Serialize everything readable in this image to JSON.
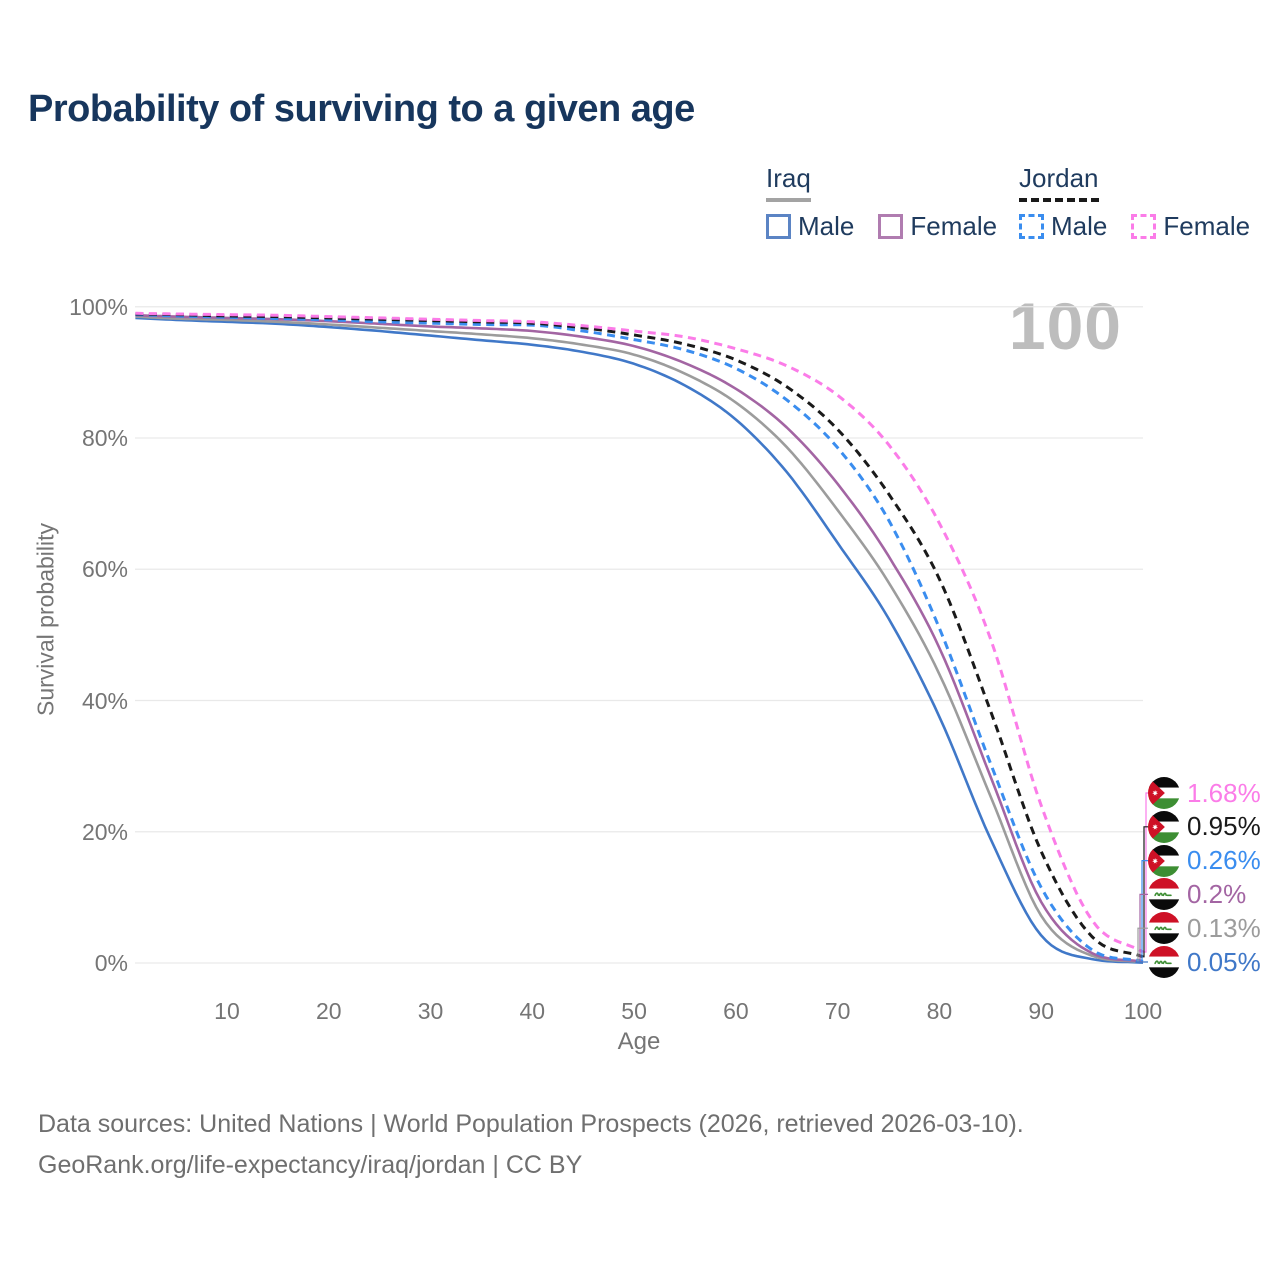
{
  "title": "Probability of surviving to a given age",
  "watermark": "100",
  "legend": {
    "groups": [
      {
        "country": "Iraq",
        "line_style": "solid",
        "underline_color": "#a3a3a3",
        "items": [
          {
            "label": "Male",
            "color": "#5b84c4"
          },
          {
            "label": "Female",
            "color": "#b07cb0"
          }
        ]
      },
      {
        "country": "Jordan",
        "line_style": "dashed",
        "underline_color": "#1a1a1a",
        "items": [
          {
            "label": "Male",
            "color": "#3a8def"
          },
          {
            "label": "Female",
            "color": "#fb7ce8"
          }
        ]
      }
    ]
  },
  "axes": {
    "x": {
      "label": "Age",
      "ticks": [
        10,
        20,
        30,
        40,
        50,
        60,
        70,
        80,
        90,
        100
      ],
      "range": [
        0,
        100
      ]
    },
    "y": {
      "label": "Survival probability",
      "tick_labels": [
        "0%",
        "20%",
        "40%",
        "60%",
        "80%",
        "100%"
      ],
      "tick_values": [
        0,
        20,
        40,
        60,
        80,
        100
      ],
      "range": [
        0,
        100
      ]
    }
  },
  "chart_data": {
    "type": "line",
    "title": "Probability of surviving to a given age",
    "xlabel": "Age",
    "ylabel": "Survival probability",
    "xlim": [
      0,
      100
    ],
    "ylim_percent": [
      0,
      100
    ],
    "grid": "horizontal",
    "x": [
      1,
      5,
      10,
      15,
      20,
      25,
      30,
      35,
      40,
      45,
      50,
      55,
      60,
      65,
      70,
      75,
      80,
      85,
      90,
      95,
      100
    ],
    "series": [
      {
        "name": "Iraq Male",
        "country": "Iraq",
        "style": "solid",
        "color": "#4078c8",
        "end_label": "0.05%",
        "values": [
          98.3,
          98.0,
          97.7,
          97.4,
          96.9,
          96.3,
          95.6,
          94.9,
          94.2,
          93.1,
          91.3,
          88.0,
          82.8,
          74.8,
          64.0,
          52.5,
          37.5,
          19.0,
          4.2,
          0.6,
          0.05
        ]
      },
      {
        "name": "Iraq",
        "country": "Iraq",
        "style": "solid",
        "color": "#9c9c9c",
        "end_label": "0.13%",
        "values": [
          98.5,
          98.2,
          98.0,
          97.7,
          97.3,
          96.8,
          96.3,
          95.8,
          95.2,
          94.2,
          92.7,
          89.8,
          85.4,
          78.6,
          69.0,
          58.0,
          44.0,
          25.5,
          7.2,
          1.1,
          0.13
        ]
      },
      {
        "name": "Iraq Female",
        "country": "Iraq",
        "style": "solid",
        "color": "#a365a3",
        "end_label": "0.2%",
        "values": [
          98.7,
          98.5,
          98.3,
          98.1,
          97.8,
          97.4,
          97.0,
          96.7,
          96.3,
          95.4,
          94.0,
          91.4,
          87.5,
          81.6,
          73.0,
          62.0,
          48.0,
          28.5,
          9.3,
          1.5,
          0.2
        ]
      },
      {
        "name": "Jordan Male",
        "country": "Jordan",
        "style": "dashed",
        "color": "#3a8def",
        "end_label": "0.26%",
        "values": [
          98.8,
          98.6,
          98.4,
          98.2,
          98.0,
          97.7,
          97.5,
          97.3,
          97.2,
          96.3,
          95.0,
          93.4,
          90.6,
          85.8,
          78.5,
          67.5,
          51.0,
          30.5,
          11.5,
          2.0,
          0.26
        ]
      },
      {
        "name": "Jordan",
        "country": "Jordan",
        "style": "dashed",
        "color": "#1a1a1a",
        "end_label": "0.95%",
        "values": [
          98.9,
          98.8,
          98.6,
          98.5,
          98.3,
          98.1,
          97.9,
          97.7,
          97.5,
          96.8,
          95.7,
          94.3,
          91.9,
          87.8,
          81.3,
          71.5,
          58.5,
          38.5,
          17.0,
          4.0,
          0.95
        ]
      },
      {
        "name": "Jordan Female",
        "country": "Jordan",
        "style": "dashed",
        "color": "#fb7ce8",
        "end_label": "1.68%",
        "values": [
          99.0,
          98.9,
          98.8,
          98.7,
          98.5,
          98.3,
          98.1,
          97.9,
          97.7,
          97.1,
          96.3,
          95.4,
          93.6,
          91.0,
          86.5,
          79.0,
          67.0,
          49.5,
          24.0,
          6.5,
          1.68
        ]
      }
    ]
  },
  "footer": {
    "line1": "Data sources: United Nations | World Population Prospects (2026, retrieved 2026-03-10).",
    "line2": "GeoRank.org/life-expectancy/iraq/jordan | CC BY"
  }
}
